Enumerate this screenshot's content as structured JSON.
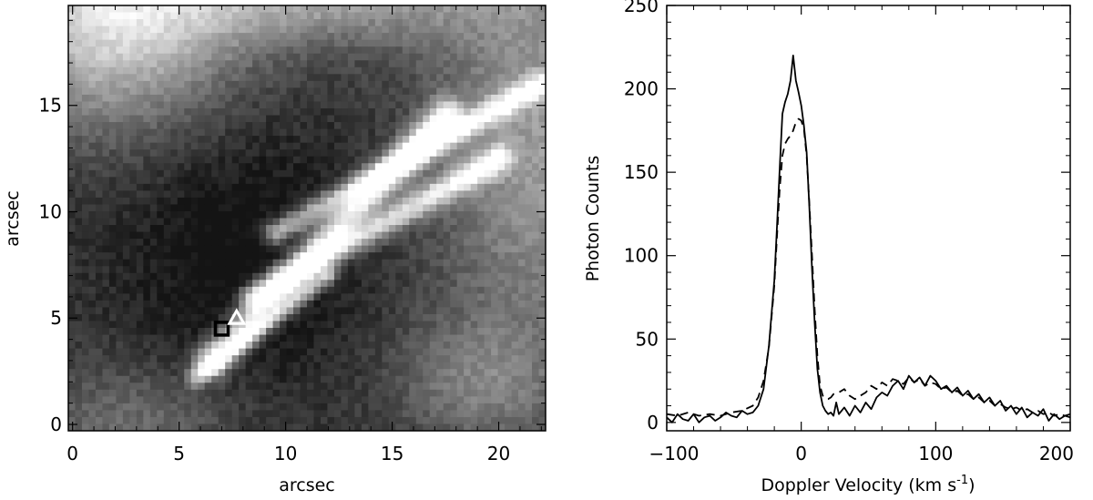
{
  "chart_data": [
    {
      "type": "heatmap",
      "title": "",
      "xlabel": "arcsec",
      "ylabel": "arcsec",
      "xlim": [
        -0.2,
        22.2
      ],
      "ylim": [
        -0.3,
        19.7
      ],
      "xticks": [
        0,
        5,
        10,
        15,
        20
      ],
      "yticks": [
        0,
        5,
        10,
        15
      ],
      "grid": false,
      "colormap": "grayscale",
      "features": [
        {
          "type": "jet",
          "from": [
            6.5,
            3.0
          ],
          "to": [
            17.5,
            14.5
          ],
          "width": 0.55,
          "peak": 0.97
        },
        {
          "type": "jet",
          "from": [
            8.5,
            6.0
          ],
          "to": [
            20.0,
            12.5
          ],
          "width": 0.45,
          "peak": 0.82
        },
        {
          "type": "jet",
          "from": [
            9.5,
            9.0
          ],
          "to": [
            22.0,
            16.0
          ],
          "width": 0.4,
          "peak": 0.78
        },
        {
          "type": "jet",
          "from": [
            5.8,
            2.2
          ],
          "to": [
            12.0,
            7.0
          ],
          "width": 0.3,
          "peak": 0.65
        }
      ],
      "markers": [
        {
          "name": "square",
          "x": 7.0,
          "y": 4.5,
          "color": "#000000"
        },
        {
          "name": "triangle",
          "x": 7.7,
          "y": 5.0,
          "color": "#ffffff"
        }
      ]
    },
    {
      "type": "line",
      "title": "",
      "xlabel": "Doppler Velocity (km s",
      "xlabel_sup": "-1",
      "xlabel_close": ")",
      "ylabel": "Photon Counts",
      "xlim": [
        -100,
        200
      ],
      "ylim": [
        -5,
        250
      ],
      "xticks": [
        -100,
        0,
        100,
        200
      ],
      "xticklabels": [
        "−100",
        "0",
        "100",
        "200"
      ],
      "yticks": [
        0,
        50,
        100,
        150,
        200,
        250
      ],
      "grid": false,
      "series": [
        {
          "style": "solid",
          "x": [
            -100,
            -96,
            -92,
            -88,
            -84,
            -80,
            -76,
            -72,
            -68,
            -64,
            -60,
            -56,
            -52,
            -48,
            -44,
            -40,
            -36,
            -32,
            -28,
            -24,
            -20,
            -18,
            -16,
            -14,
            -12,
            -10,
            -8,
            -6,
            -4,
            -2,
            0,
            2,
            4,
            6,
            8,
            10,
            12,
            14,
            16,
            18,
            20,
            22,
            24,
            26,
            28,
            32,
            36,
            40,
            44,
            48,
            52,
            56,
            60,
            64,
            68,
            72,
            76,
            80,
            84,
            88,
            92,
            96,
            100,
            104,
            108,
            112,
            116,
            120,
            124,
            128,
            132,
            136,
            140,
            144,
            148,
            152,
            156,
            160,
            164,
            168,
            172,
            176,
            180,
            184,
            188,
            192,
            196,
            200
          ],
          "y": [
            3,
            0,
            5,
            2,
            1,
            5,
            0,
            3,
            4,
            1,
            3,
            6,
            4,
            3,
            7,
            5,
            6,
            10,
            20,
            46,
            85,
            118,
            152,
            185,
            192,
            197,
            205,
            220,
            205,
            198,
            190,
            178,
            162,
            130,
            92,
            60,
            32,
            18,
            10,
            7,
            5,
            6,
            4,
            12,
            5,
            9,
            4,
            10,
            6,
            12,
            8,
            15,
            18,
            16,
            22,
            25,
            20,
            28,
            24,
            27,
            22,
            28,
            25,
            20,
            22,
            18,
            21,
            16,
            19,
            14,
            17,
            12,
            15,
            10,
            13,
            7,
            10,
            5,
            9,
            3,
            6,
            4,
            8,
            1,
            5,
            2,
            4,
            3
          ]
        },
        {
          "style": "dashed",
          "x": [
            -100,
            -92,
            -84,
            -76,
            -68,
            -60,
            -52,
            -44,
            -36,
            -32,
            -28,
            -24,
            -20,
            -18,
            -16,
            -14,
            -12,
            -10,
            -8,
            -6,
            -4,
            -2,
            0,
            2,
            4,
            6,
            8,
            10,
            12,
            14,
            16,
            18,
            20,
            22,
            24,
            28,
            32,
            36,
            40,
            44,
            48,
            52,
            56,
            60,
            64,
            68,
            72,
            76,
            80,
            84,
            88,
            92,
            96,
            100,
            104,
            108,
            112,
            116,
            120,
            124,
            128,
            132,
            136,
            140,
            144,
            148,
            152,
            156,
            160,
            164,
            168,
            172,
            176,
            180,
            184,
            188,
            192,
            196,
            200
          ],
          "y": [
            5,
            4,
            6,
            4,
            5,
            4,
            6,
            7,
            10,
            15,
            25,
            45,
            82,
            112,
            140,
            160,
            167,
            170,
            172,
            175,
            180,
            182,
            181,
            176,
            160,
            132,
            100,
            68,
            40,
            22,
            16,
            15,
            14,
            15,
            17,
            18,
            20,
            16,
            14,
            16,
            18,
            22,
            20,
            24,
            22,
            26,
            25,
            23,
            27,
            24,
            26,
            22,
            24,
            23,
            20,
            21,
            18,
            19,
            16,
            17,
            14,
            15,
            12,
            13,
            10,
            11,
            9,
            8,
            9,
            7,
            8,
            6,
            7,
            5,
            6,
            4,
            5,
            4,
            5
          ]
        }
      ]
    }
  ]
}
